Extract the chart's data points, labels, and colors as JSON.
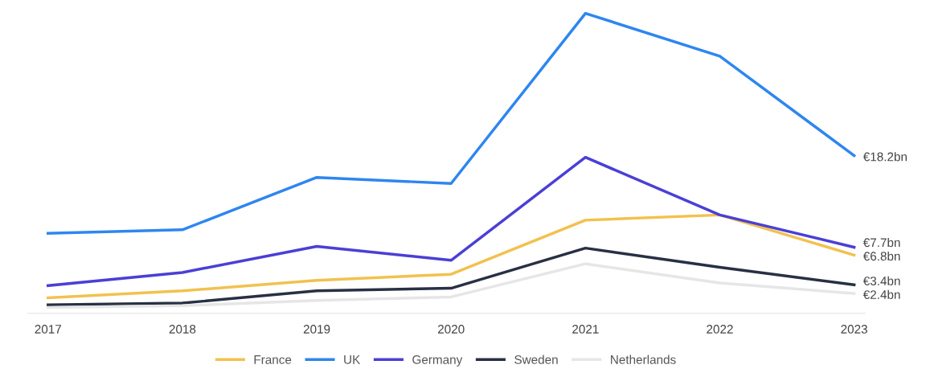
{
  "chart_data": {
    "type": "line",
    "categories": [
      "2017",
      "2018",
      "2019",
      "2020",
      "2021",
      "2022",
      "2023"
    ],
    "series": [
      {
        "name": "France",
        "color": "#f2c14e",
        "values": [
          1.9,
          2.7,
          3.9,
          4.6,
          10.8,
          11.4,
          6.8
        ],
        "value_labels": [
          null,
          null,
          null,
          null,
          null,
          null,
          "€6.8bn"
        ]
      },
      {
        "name": "UK",
        "color": "#2e86f0",
        "values": [
          9.3,
          9.7,
          15.7,
          15.0,
          34.5,
          29.6,
          18.2
        ],
        "value_labels": [
          null,
          null,
          null,
          null,
          null,
          null,
          "€18.2bn"
        ]
      },
      {
        "name": "Germany",
        "color": "#4b3fd6",
        "values": [
          3.3,
          4.8,
          7.8,
          6.2,
          18.0,
          11.4,
          7.7
        ],
        "value_labels": [
          null,
          null,
          null,
          null,
          null,
          null,
          "€7.7bn"
        ]
      },
      {
        "name": "Sweden",
        "color": "#283044",
        "values": [
          1.1,
          1.3,
          2.7,
          3.0,
          7.6,
          5.4,
          3.4
        ],
        "value_labels": [
          null,
          null,
          null,
          null,
          null,
          null,
          "€3.4bn"
        ]
      },
      {
        "name": "Netherlands",
        "color": "#e6e6e6",
        "values": [
          0.8,
          1.0,
          1.6,
          2.0,
          5.8,
          3.6,
          2.4
        ],
        "value_labels": [
          null,
          null,
          null,
          null,
          null,
          null,
          "€2.4bn"
        ]
      }
    ],
    "tick_labels": "x",
    "grid": false,
    "legend": "bottom",
    "marker": "none",
    "line_style": "solid"
  }
}
